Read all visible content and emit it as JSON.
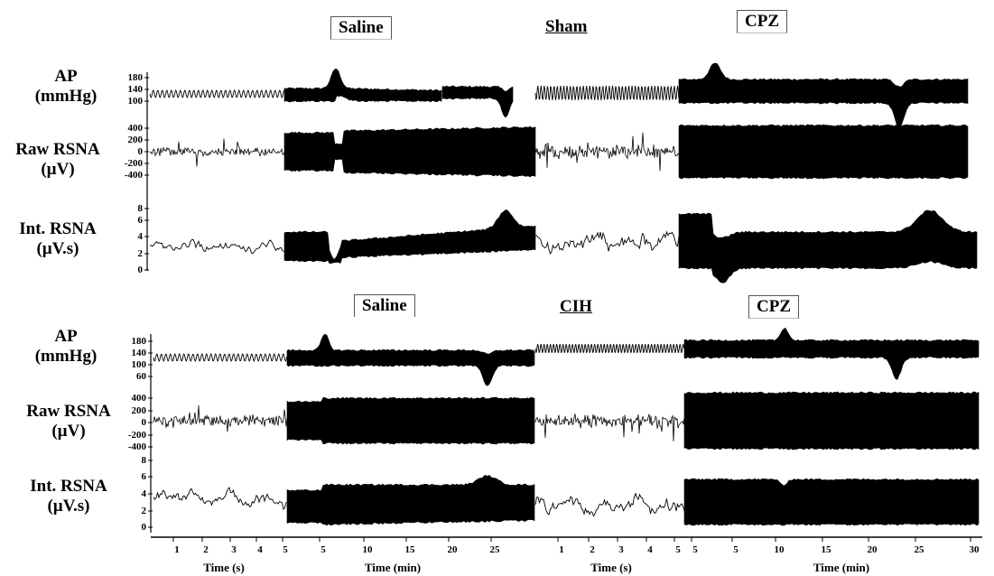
{
  "panels": [
    {
      "conditions": [
        {
          "label": "Saline",
          "style": "boxed"
        },
        {
          "label": "Sham",
          "style": "underline"
        },
        {
          "label": "CPZ",
          "style": "boxed"
        }
      ],
      "rows": [
        {
          "label_line1": "AP",
          "label_line2": "(mmHg)",
          "ticks": [
            "180",
            "140",
            "100"
          ]
        },
        {
          "label_line1": "Raw RSNA",
          "label_line2": "(µV)",
          "ticks": [
            "400",
            "200",
            "0",
            "-200",
            "-400"
          ]
        },
        {
          "label_line1": "Int. RSNA",
          "label_line2": "(µV.s)",
          "ticks": [
            "8",
            "6",
            "4",
            "2",
            "0"
          ]
        }
      ]
    },
    {
      "conditions": [
        {
          "label": "Saline",
          "style": "boxed"
        },
        {
          "label": "CIH",
          "style": "underline"
        },
        {
          "label": "CPZ",
          "style": "boxed"
        }
      ],
      "rows": [
        {
          "label_line1": "AP",
          "label_line2": "(mmHg)",
          "ticks": [
            "180",
            "140",
            "100",
            "60"
          ]
        },
        {
          "label_line1": "Raw RSNA",
          "label_line2": "(µV)",
          "ticks": [
            "400",
            "200",
            "0",
            "-200",
            "-400"
          ]
        },
        {
          "label_line1": "Int. RSNA",
          "label_line2": "(µV.s)",
          "ticks": [
            "8",
            "6",
            "4",
            "2",
            "0"
          ]
        }
      ]
    }
  ],
  "x_axis": {
    "segments": [
      {
        "label": "Time (s)",
        "ticks": [
          "1",
          "2",
          "3",
          "4",
          "5"
        ]
      },
      {
        "label": "Time (min)",
        "ticks": [
          "5",
          "10",
          "15",
          "20",
          "25"
        ]
      },
      {
        "label": "Time (s)",
        "ticks": [
          "1",
          "2",
          "3",
          "4",
          "5"
        ]
      },
      {
        "label": "Time (min)",
        "ticks": [
          "5",
          "5",
          "10",
          "15",
          "20",
          "25",
          "30"
        ]
      }
    ]
  },
  "chart_data": {
    "type": "line",
    "title": "",
    "series": [
      {
        "panel": "Sham",
        "trace": "AP",
        "segments": [
          {
            "condition": "Saline",
            "time": "s",
            "x": [
              0,
              5
            ],
            "mean": 125,
            "range": [
              100,
              150
            ]
          },
          {
            "condition": "Saline",
            "time": "min",
            "x": [
              5,
              27
            ],
            "events": [
              {
                "x": 6.5,
                "peak": 175
              },
              {
                "x": 25,
                "trough": 100
              }
            ]
          },
          {
            "condition": "CPZ",
            "time": "s",
            "x": [
              0,
              5
            ],
            "mean": 130,
            "range": [
              100,
              160
            ]
          },
          {
            "condition": "CPZ",
            "time": "min",
            "x": [
              5,
              30
            ],
            "events": [
              {
                "x": 6.5,
                "peak": 180
              },
              {
                "x": 21.5,
                "trough": 95
              }
            ]
          }
        ]
      },
      {
        "panel": "Sham",
        "trace": "Raw RSNA",
        "range": [
          -400,
          400
        ]
      },
      {
        "panel": "Sham",
        "trace": "Int. RSNA",
        "range": [
          0,
          8
        ]
      },
      {
        "panel": "CIH",
        "trace": "AP",
        "segments": [
          {
            "condition": "Saline",
            "time": "s",
            "x": [
              0,
              5
            ],
            "mean": 125,
            "range": [
              110,
              145
            ]
          },
          {
            "condition": "Saline",
            "time": "min",
            "x": [
              5,
              27
            ],
            "events": [
              {
                "x": 6.5,
                "peak": 170
              },
              {
                "x": 24,
                "trough": 75
              }
            ]
          },
          {
            "condition": "CPZ",
            "time": "s",
            "x": [
              0,
              5
            ],
            "mean": 135,
            "range": [
              120,
              150
            ]
          },
          {
            "condition": "CPZ",
            "time": "min",
            "x": [
              5,
              30
            ],
            "events": [
              {
                "x": 10.5,
                "peak": 175
              },
              {
                "x": 21.5,
                "trough": 80
              }
            ]
          }
        ]
      },
      {
        "panel": "CIH",
        "trace": "Raw RSNA",
        "range": [
          -400,
          400
        ]
      },
      {
        "panel": "CIH",
        "trace": "Int. RSNA",
        "range": [
          0,
          8
        ]
      }
    ]
  }
}
